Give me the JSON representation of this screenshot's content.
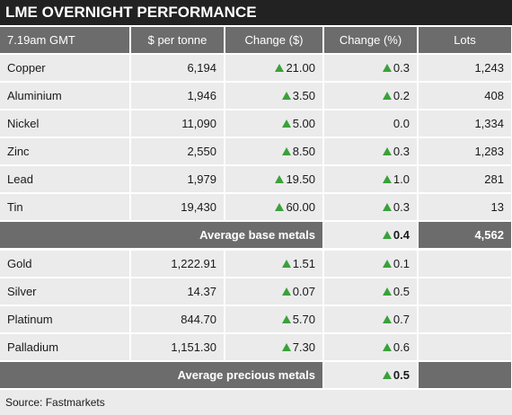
{
  "title": "LME OVERNIGHT PERFORMANCE",
  "columns": [
    "7.19am GMT",
    "$ per tonne",
    "Change ($)",
    "Change (%)",
    "Lots"
  ],
  "base_metals": [
    {
      "cells": [
        "Copper",
        "6,194",
        "21.00",
        "0.3",
        "1,243"
      ],
      "trends": [
        "up",
        "up"
      ]
    },
    {
      "cells": [
        "Aluminium",
        "1,946",
        "3.50",
        "0.2",
        "408"
      ],
      "trends": [
        "up",
        "up"
      ]
    },
    {
      "cells": [
        "Nickel",
        "11,090",
        "5.00",
        "0.0",
        "1,334"
      ],
      "trends": [
        "up",
        "flat"
      ]
    },
    {
      "cells": [
        "Zinc",
        "2,550",
        "8.50",
        "0.3",
        "1,283"
      ],
      "trends": [
        "up",
        "up"
      ]
    },
    {
      "cells": [
        "Lead",
        "1,979",
        "19.50",
        "1.0",
        "281"
      ],
      "trends": [
        "up",
        "up"
      ]
    },
    {
      "cells": [
        "Tin",
        "19,430",
        "60.00",
        "0.3",
        "13"
      ],
      "trends": [
        "up",
        "up"
      ]
    }
  ],
  "base_average": {
    "label": "Average base metals",
    "change_pct": "0.4",
    "trend": "up",
    "lots": "4,562"
  },
  "precious_metals": [
    {
      "cells": [
        "Gold",
        "1,222.91",
        "1.51",
        "0.1",
        ""
      ],
      "trends": [
        "up",
        "up"
      ]
    },
    {
      "cells": [
        "Silver",
        "14.37",
        "0.07",
        "0.5",
        ""
      ],
      "trends": [
        "up",
        "up"
      ]
    },
    {
      "cells": [
        "Platinum",
        "844.70",
        "5.70",
        "0.7",
        ""
      ],
      "trends": [
        "up",
        "up"
      ]
    },
    {
      "cells": [
        "Palladium",
        "1,151.30",
        "7.30",
        "0.6",
        ""
      ],
      "trends": [
        "up",
        "up"
      ]
    }
  ],
  "precious_average": {
    "label": "Average precious metals",
    "change_pct": "0.5",
    "trend": "up"
  },
  "source": "Source: Fastmarkets"
}
